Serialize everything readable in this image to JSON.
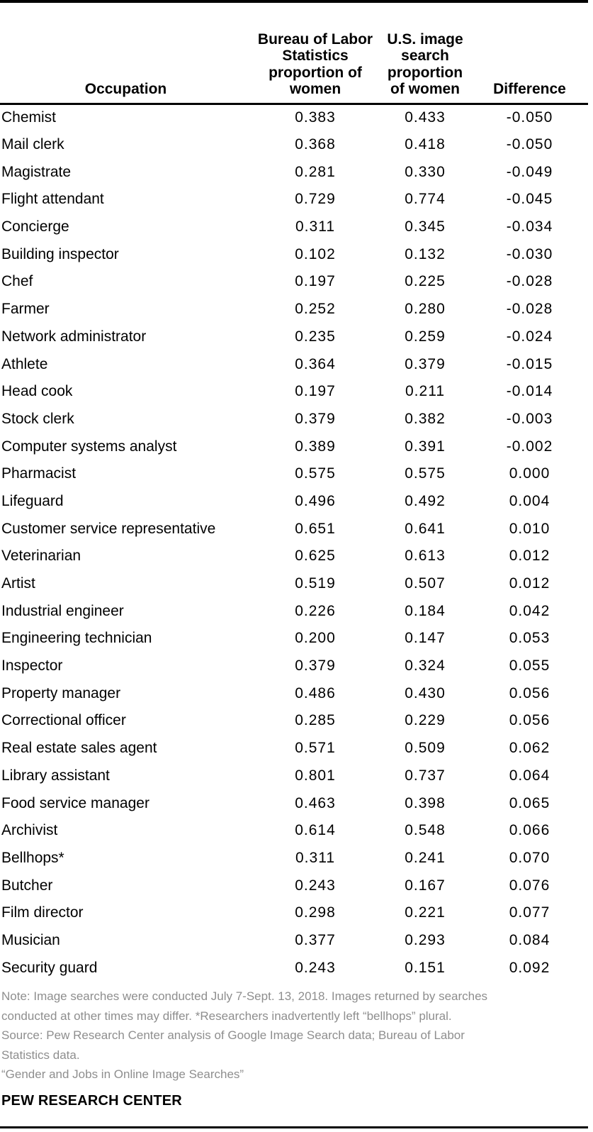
{
  "page": {
    "background": "#ffffff",
    "rule_color": "#000000",
    "note_color": "#8e8e8e"
  },
  "chart_data": {
    "type": "table",
    "title": "",
    "columns": [
      "Occupation",
      "Bureau of Labor Statistics proportion of women",
      "U.S. image search proportion of women",
      "Difference"
    ],
    "header": {
      "occupation": "Occupation",
      "bls": "Bureau of Labor\nStatistics\nproportion of\nwomen",
      "search": "U.S. image\nsearch\nproportion\nof women",
      "difference": "Difference"
    },
    "rows": [
      {
        "occupation": "Chemist",
        "bls": "0.383",
        "search": "0.433",
        "diff": "-0.050"
      },
      {
        "occupation": "Mail clerk",
        "bls": "0.368",
        "search": "0.418",
        "diff": "-0.050"
      },
      {
        "occupation": "Magistrate",
        "bls": "0.281",
        "search": "0.330",
        "diff": "-0.049"
      },
      {
        "occupation": "Flight attendant",
        "bls": "0.729",
        "search": "0.774",
        "diff": "-0.045"
      },
      {
        "occupation": "Concierge",
        "bls": "0.311",
        "search": "0.345",
        "diff": "-0.034"
      },
      {
        "occupation": "Building inspector",
        "bls": "0.102",
        "search": "0.132",
        "diff": "-0.030"
      },
      {
        "occupation": "Chef",
        "bls": "0.197",
        "search": "0.225",
        "diff": "-0.028"
      },
      {
        "occupation": "Farmer",
        "bls": "0.252",
        "search": "0.280",
        "diff": "-0.028"
      },
      {
        "occupation": "Network administrator",
        "bls": "0.235",
        "search": "0.259",
        "diff": "-0.024"
      },
      {
        "occupation": "Athlete",
        "bls": "0.364",
        "search": "0.379",
        "diff": "-0.015"
      },
      {
        "occupation": "Head cook",
        "bls": "0.197",
        "search": "0.211",
        "diff": "-0.014"
      },
      {
        "occupation": "Stock clerk",
        "bls": "0.379",
        "search": "0.382",
        "diff": "-0.003"
      },
      {
        "occupation": "Computer systems analyst",
        "bls": "0.389",
        "search": "0.391",
        "diff": "-0.002"
      },
      {
        "occupation": "Pharmacist",
        "bls": "0.575",
        "search": "0.575",
        "diff": "0.000"
      },
      {
        "occupation": "Lifeguard",
        "bls": "0.496",
        "search": "0.492",
        "diff": "0.004"
      },
      {
        "occupation": "Customer service representative",
        "bls": "0.651",
        "search": "0.641",
        "diff": "0.010"
      },
      {
        "occupation": "Veterinarian",
        "bls": "0.625",
        "search": "0.613",
        "diff": "0.012"
      },
      {
        "occupation": "Artist",
        "bls": "0.519",
        "search": "0.507",
        "diff": "0.012"
      },
      {
        "occupation": "Industrial engineer",
        "bls": "0.226",
        "search": "0.184",
        "diff": "0.042"
      },
      {
        "occupation": "Engineering technician",
        "bls": "0.200",
        "search": "0.147",
        "diff": "0.053"
      },
      {
        "occupation": "Inspector",
        "bls": "0.379",
        "search": "0.324",
        "diff": "0.055"
      },
      {
        "occupation": "Property manager",
        "bls": "0.486",
        "search": "0.430",
        "diff": "0.056"
      },
      {
        "occupation": "Correctional officer",
        "bls": "0.285",
        "search": "0.229",
        "diff": "0.056"
      },
      {
        "occupation": "Real estate sales agent",
        "bls": "0.571",
        "search": "0.509",
        "diff": "0.062"
      },
      {
        "occupation": "Library assistant",
        "bls": "0.801",
        "search": "0.737",
        "diff": "0.064"
      },
      {
        "occupation": "Food service manager",
        "bls": "0.463",
        "search": "0.398",
        "diff": "0.065"
      },
      {
        "occupation": "Archivist",
        "bls": "0.614",
        "search": "0.548",
        "diff": "0.066"
      },
      {
        "occupation": "Bellhops*",
        "bls": "0.311",
        "search": "0.241",
        "diff": "0.070"
      },
      {
        "occupation": "Butcher",
        "bls": "0.243",
        "search": "0.167",
        "diff": "0.076"
      },
      {
        "occupation": "Film director",
        "bls": "0.298",
        "search": "0.221",
        "diff": "0.077"
      },
      {
        "occupation": "Musician",
        "bls": "0.377",
        "search": "0.293",
        "diff": "0.084"
      },
      {
        "occupation": "Security guard",
        "bls": "0.243",
        "search": "0.151",
        "diff": "0.092"
      }
    ]
  },
  "footer": {
    "note": "Note: Image searches were conducted July 7-Sept. 13, 2018. Images returned by searches\nconducted at other times may differ. *Researchers inadvertently left “bellhops” plural.\nSource: Pew Research Center analysis of Google Image Search data; Bureau of Labor\nStatistics data.\n“Gender and Jobs in Online Image Searches”",
    "brand": "PEW RESEARCH CENTER"
  }
}
